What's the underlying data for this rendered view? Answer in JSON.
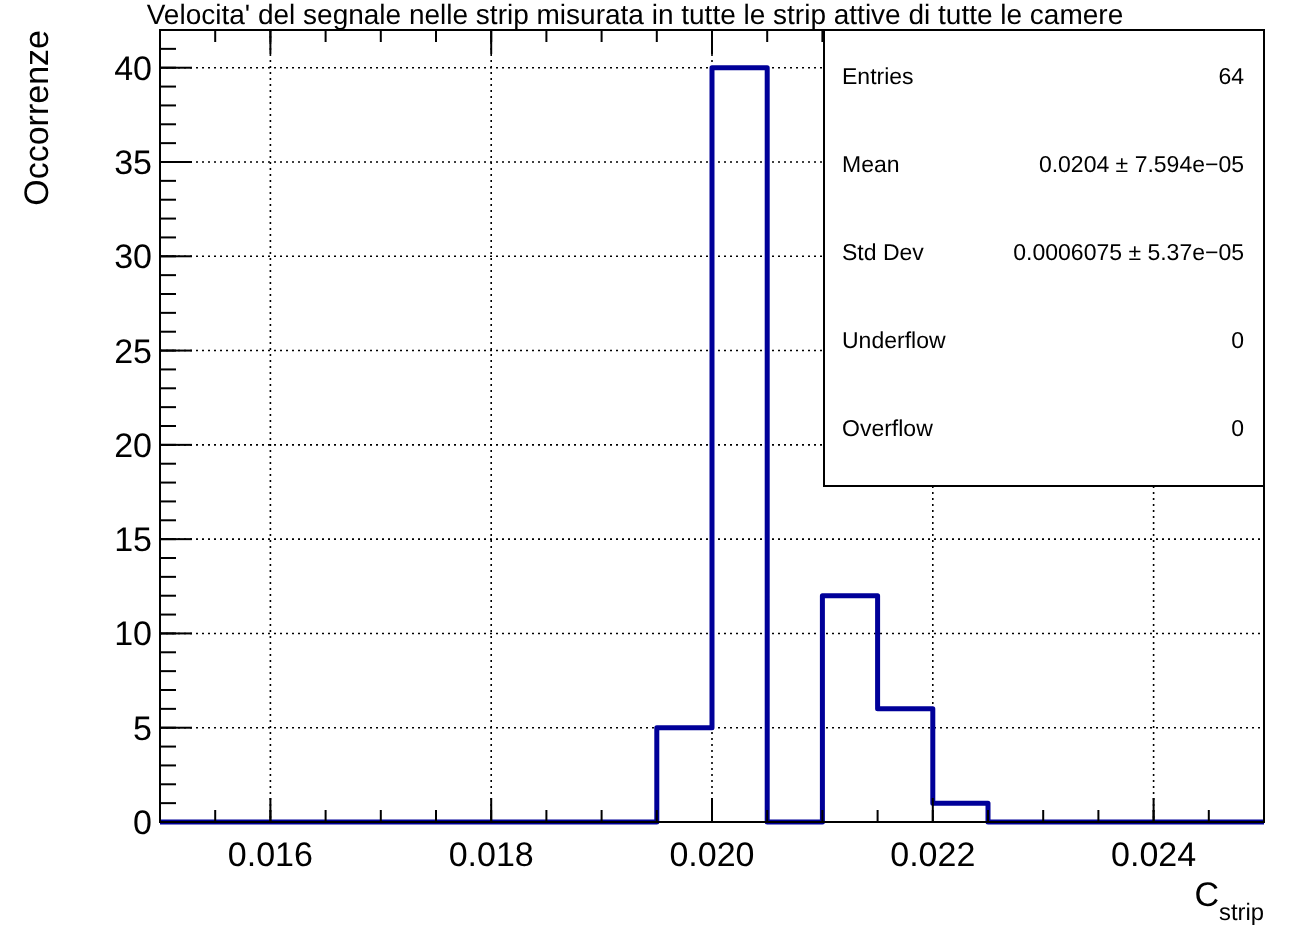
{
  "chart_data": {
    "type": "histogram",
    "title": "Velocita' del segnale nelle strip misurata in tutte le strip attive di tutte le camere",
    "xlabel": "C$_{strip}$",
    "ylabel": "Occorrenze",
    "bins": [
      0.015,
      0.0155,
      0.016,
      0.0165,
      0.017,
      0.0175,
      0.018,
      0.0185,
      0.019,
      0.0195,
      0.02,
      0.0205,
      0.021,
      0.0215,
      0.022,
      0.0225,
      0.023,
      0.0235,
      0.024,
      0.0245,
      0.025
    ],
    "values": [
      0,
      0,
      0,
      0,
      0,
      0,
      0,
      0,
      0,
      5,
      40,
      0,
      12,
      6,
      1,
      0,
      0,
      0,
      0,
      0
    ],
    "color": "#000099",
    "xlim": [
      0.015,
      0.025
    ],
    "xticks": [
      {
        "value": 0.016,
        "label": "0.016"
      },
      {
        "value": 0.018,
        "label": "0.018"
      },
      {
        "value": 0.02,
        "label": "0.020"
      },
      {
        "value": 0.022,
        "label": "0.022"
      },
      {
        "value": 0.024,
        "label": "0.024"
      }
    ],
    "ylim": [
      0,
      42
    ],
    "yticks": [
      0,
      5,
      10,
      15,
      20,
      25,
      30,
      35,
      40
    ],
    "grid": true,
    "annotations": [
      "Entries",
      "64",
      "Mean",
      "0.0204 ± 7.594e−05",
      "Std Dev",
      "0.0006075 ± 5.37e−05",
      "Underflow",
      "0",
      "Overflow",
      "0"
    ]
  }
}
